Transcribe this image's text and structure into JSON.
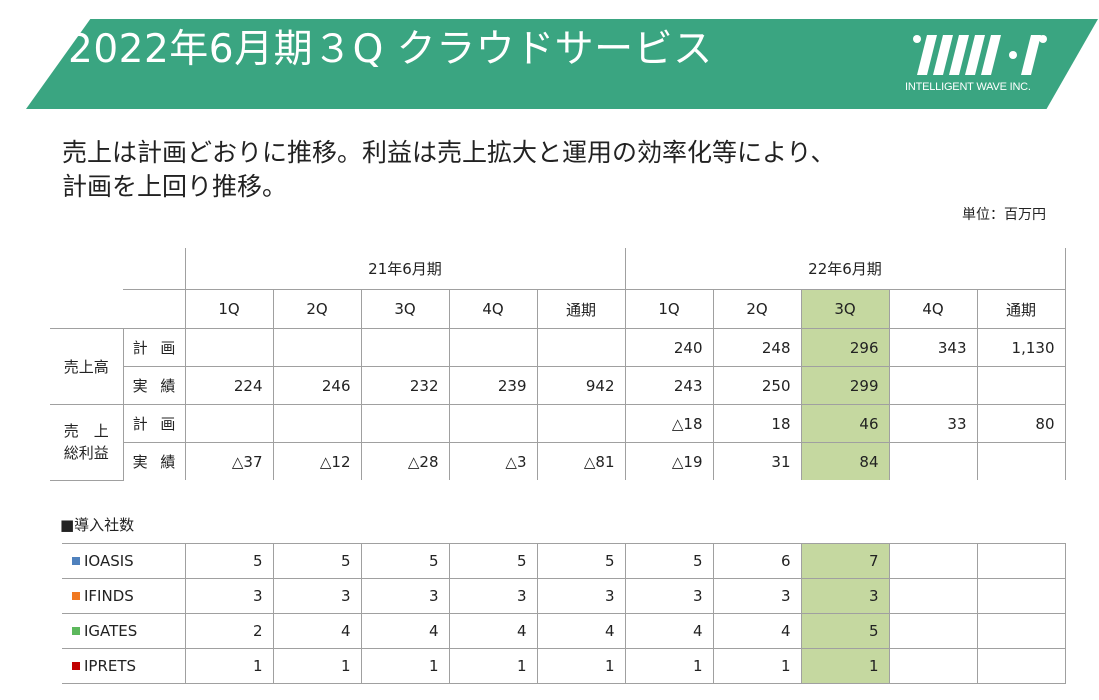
{
  "header": {
    "title": "2022年6月期３Q クラウドサービス",
    "logo_text": "INTELLIGENT WAVE INC.",
    "colors": {
      "banner": "#3aa581",
      "highlight": "#c5d8a0"
    }
  },
  "headline": {
    "line1": "売上は計画どおりに推移。利益は売上拡大と運用の効率化等により、",
    "line2": "計画を上回り推移。"
  },
  "unit": "単位：百万円",
  "table": {
    "groups": [
      "21年6月期",
      "22年6月期"
    ],
    "quarters": [
      "1Q",
      "2Q",
      "3Q",
      "4Q",
      "通期",
      "1Q",
      "2Q",
      "3Q",
      "4Q",
      "通期"
    ],
    "rows": [
      {
        "metric": "売上高",
        "type": "計 画",
        "values": [
          "",
          "",
          "",
          "",
          "",
          "240",
          "248",
          "296",
          "343",
          "1,130"
        ]
      },
      {
        "metric": "売上高",
        "type": "実 績",
        "values": [
          "224",
          "246",
          "232",
          "239",
          "942",
          "243",
          "250",
          "299",
          "",
          ""
        ]
      },
      {
        "metric": "売　上\n総利益",
        "type": "計 画",
        "values": [
          "",
          "",
          "",
          "",
          "",
          "△18",
          "18",
          "46",
          "33",
          "80"
        ]
      },
      {
        "metric": "売　上\n総利益",
        "type": "実 績",
        "values": [
          "△37",
          "△12",
          "△28",
          "△3",
          "△81",
          "△19",
          "31",
          "84",
          "",
          ""
        ]
      }
    ],
    "metric_labels": {
      "sales": "売上高",
      "gross_line1": "売　上",
      "gross_line2": "総利益"
    }
  },
  "installs": {
    "title": "■導入社数",
    "rows": [
      {
        "name": "IOASIS",
        "color": "#4f81bd",
        "values": [
          "5",
          "5",
          "5",
          "5",
          "5",
          "5",
          "6",
          "7",
          "",
          ""
        ]
      },
      {
        "name": "IFINDS",
        "color": "#f07820",
        "values": [
          "3",
          "3",
          "3",
          "3",
          "3",
          "3",
          "3",
          "3",
          "",
          ""
        ]
      },
      {
        "name": "IGATES",
        "color": "#5cb85c",
        "values": [
          "2",
          "4",
          "4",
          "4",
          "4",
          "4",
          "4",
          "5",
          "",
          ""
        ]
      },
      {
        "name": "IPRETS",
        "color": "#c00000",
        "values": [
          "1",
          "1",
          "1",
          "1",
          "1",
          "1",
          "1",
          "1",
          "",
          ""
        ]
      }
    ]
  }
}
